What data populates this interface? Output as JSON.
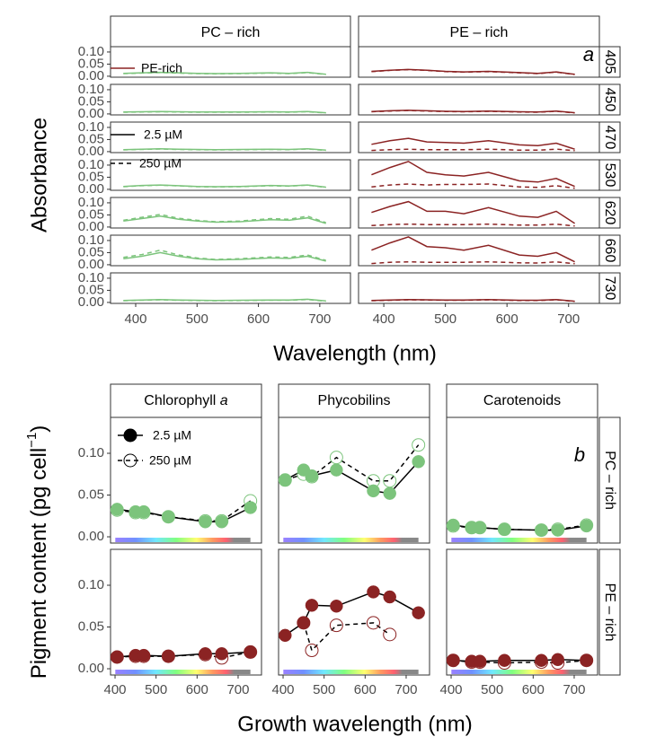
{
  "chart_data": [
    {
      "type": "line",
      "label": "a",
      "y_label": "Absorbance",
      "x_label": "Wavelength (nm)",
      "columns": [
        "PC – rich",
        "PE – rich"
      ],
      "strains": [
        "PC-rich",
        "PE-rich"
      ],
      "colors": [
        "#7cc47c",
        "#8b2323"
      ],
      "doses": [
        "2.5 µM",
        "250 µM"
      ],
      "dashes": [
        "solid",
        "dashed"
      ],
      "x": [
        380,
        410,
        440,
        470,
        500,
        530,
        570,
        620,
        650,
        680,
        710
      ],
      "xlim": [
        359,
        750
      ],
      "xticks": [
        400,
        500,
        600,
        700
      ],
      "ylim": [
        -0.004,
        0.122
      ],
      "yticks": [
        {
          "value": 0,
          "label": "0.00"
        },
        {
          "value": 0.05,
          "label": "0.05"
        },
        {
          "value": 0.1,
          "label": "0.10"
        }
      ],
      "rows": [
        {
          "label": "405",
          "values": [
            [
              [
                0.012,
                0.014,
                0.016,
                0.014,
                0.012,
                0.011,
                0.012,
                0.014,
                0.012,
                0.016,
                0.008
              ],
              [
                0.011,
                0.013,
                0.015,
                0.013,
                0.011,
                0.01,
                0.011,
                0.013,
                0.011,
                0.015,
                0.007
              ]
            ],
            [
              [
                0.02,
                0.025,
                0.028,
                0.025,
                0.02,
                0.018,
                0.02,
                0.015,
                0.012,
                0.018,
                0.008
              ],
              [
                0.019,
                0.024,
                0.027,
                0.024,
                0.019,
                0.017,
                0.019,
                0.014,
                0.011,
                0.017,
                0.007
              ]
            ]
          ]
        },
        {
          "label": "450",
          "values": [
            [
              [
                0.008,
                0.009,
                0.01,
                0.009,
                0.008,
                0.008,
                0.008,
                0.009,
                0.008,
                0.01,
                0.005
              ],
              [
                0.007,
                0.008,
                0.009,
                0.008,
                0.007,
                0.007,
                0.007,
                0.008,
                0.007,
                0.009,
                0.004
              ]
            ],
            [
              [
                0.01,
                0.013,
                0.015,
                0.013,
                0.011,
                0.01,
                0.012,
                0.009,
                0.008,
                0.012,
                0.005
              ],
              [
                0.009,
                0.012,
                0.014,
                0.012,
                0.01,
                0.009,
                0.011,
                0.008,
                0.007,
                0.011,
                0.004
              ]
            ]
          ]
        },
        {
          "label": "470",
          "values": [
            [
              [
                0.008,
                0.01,
                0.012,
                0.01,
                0.009,
                0.008,
                0.009,
                0.01,
                0.009,
                0.012,
                0.006
              ],
              [
                0.007,
                0.009,
                0.011,
                0.009,
                0.008,
                0.007,
                0.008,
                0.009,
                0.008,
                0.011,
                0.005
              ]
            ],
            [
              [
                0.03,
                0.045,
                0.055,
                0.04,
                0.038,
                0.035,
                0.045,
                0.028,
                0.025,
                0.035,
                0.01
              ],
              [
                0.005,
                0.008,
                0.01,
                0.008,
                0.008,
                0.008,
                0.01,
                0.006,
                0.006,
                0.01,
                0.004
              ]
            ]
          ]
        },
        {
          "label": "530",
          "values": [
            [
              [
                0.012,
                0.016,
                0.018,
                0.015,
                0.012,
                0.011,
                0.012,
                0.016,
                0.014,
                0.018,
                0.009
              ],
              [
                0.011,
                0.015,
                0.017,
                0.014,
                0.011,
                0.01,
                0.011,
                0.015,
                0.013,
                0.017,
                0.008
              ]
            ],
            [
              [
                0.06,
                0.09,
                0.115,
                0.07,
                0.06,
                0.055,
                0.07,
                0.035,
                0.03,
                0.045,
                0.012
              ],
              [
                0.01,
                0.018,
                0.022,
                0.018,
                0.02,
                0.02,
                0.022,
                0.01,
                0.008,
                0.015,
                0.004
              ]
            ]
          ]
        },
        {
          "label": "620",
          "values": [
            [
              [
                0.025,
                0.035,
                0.045,
                0.032,
                0.025,
                0.02,
                0.022,
                0.03,
                0.028,
                0.038,
                0.015
              ],
              [
                0.028,
                0.04,
                0.052,
                0.036,
                0.028,
                0.022,
                0.025,
                0.035,
                0.032,
                0.045,
                0.018
              ]
            ],
            [
              [
                0.06,
                0.085,
                0.105,
                0.065,
                0.065,
                0.055,
                0.08,
                0.045,
                0.04,
                0.065,
                0.015
              ],
              [
                0.006,
                0.01,
                0.012,
                0.01,
                0.01,
                0.01,
                0.012,
                0.008,
                0.008,
                0.012,
                0.004
              ]
            ]
          ]
        },
        {
          "label": "660",
          "values": [
            [
              [
                0.025,
                0.035,
                0.05,
                0.035,
                0.025,
                0.02,
                0.022,
                0.028,
                0.026,
                0.035,
                0.015
              ],
              [
                0.03,
                0.042,
                0.06,
                0.04,
                0.028,
                0.022,
                0.025,
                0.032,
                0.03,
                0.04,
                0.018
              ]
            ],
            [
              [
                0.06,
                0.09,
                0.115,
                0.075,
                0.07,
                0.06,
                0.08,
                0.04,
                0.035,
                0.05,
                0.012
              ],
              [
                0.005,
                0.01,
                0.012,
                0.01,
                0.01,
                0.01,
                0.012,
                0.008,
                0.007,
                0.012,
                0.004
              ]
            ]
          ]
        },
        {
          "label": "730",
          "values": [
            [
              [
                0.008,
                0.01,
                0.012,
                0.01,
                0.009,
                0.008,
                0.009,
                0.01,
                0.01,
                0.013,
                0.006
              ],
              [
                0.007,
                0.009,
                0.011,
                0.009,
                0.008,
                0.007,
                0.008,
                0.009,
                0.009,
                0.012,
                0.005
              ]
            ],
            [
              [
                0.008,
                0.01,
                0.012,
                0.011,
                0.01,
                0.01,
                0.012,
                0.009,
                0.009,
                0.012,
                0.005
              ],
              [
                0.007,
                0.009,
                0.011,
                0.01,
                0.009,
                0.009,
                0.011,
                0.008,
                0.008,
                0.011,
                0.004
              ]
            ]
          ]
        }
      ]
    },
    {
      "type": "line",
      "label": "b",
      "y_label": [
        "Pigment content  (pg cell",
        "−1",
        ")"
      ],
      "x_label": "Growth wavelength (nm)",
      "columns": [
        [
          "Chlorophyll ",
          "a"
        ],
        [
          "Phycobilins"
        ],
        [
          "Carotenoids"
        ]
      ],
      "rows": [
        "PC – rich",
        "PE – rich"
      ],
      "colors": [
        "#7cc47c",
        "#8b2323"
      ],
      "doses": [
        "2.5 µM",
        "250 µM"
      ],
      "dashes": [
        "solid",
        "dashed"
      ],
      "markers": [
        "filled",
        "open"
      ],
      "x": [
        405,
        450,
        470,
        530,
        620,
        660,
        730
      ],
      "xlim": [
        389,
        757
      ],
      "xticks": [
        400,
        500,
        600,
        700
      ],
      "ylim": [
        -0.0075,
        0.143
      ],
      "yticks": [
        {
          "value": 0,
          "label": "0.00"
        },
        {
          "value": 0.05,
          "label": "0.05"
        },
        {
          "value": 0.1,
          "label": "0.10"
        }
      ],
      "values": [
        [
          [
            [
              0.033,
              0.03,
              0.03,
              0.024,
              0.018,
              0.018,
              0.035
            ],
            [
              0.032,
              0.029,
              0.029,
              0.024,
              0.019,
              0.019,
              0.043
            ]
          ],
          [
            [
              0.068,
              0.08,
              0.073,
              0.08,
              0.055,
              0.052,
              0.09
            ],
            [
              0.068,
              0.075,
              0.072,
              0.095,
              0.067,
              0.067,
              0.11
            ]
          ],
          [
            [
              0.014,
              0.011,
              0.011,
              0.009,
              0.008,
              0.008,
              0.013
            ],
            [
              0.013,
              0.011,
              0.011,
              0.009,
              0.008,
              0.009,
              0.014
            ]
          ]
        ],
        [
          [
            [
              0.014,
              0.016,
              0.016,
              0.015,
              0.018,
              0.018,
              0.02
            ],
            [
              0.014,
              0.015,
              0.015,
              0.015,
              0.017,
              0.013,
              0.02
            ]
          ],
          [
            [
              0.04,
              0.055,
              0.076,
              0.075,
              0.092,
              0.086,
              0.067
            ],
            [
              null,
              0.055,
              0.022,
              0.052,
              0.055,
              0.041,
              null
            ]
          ],
          [
            [
              0.01,
              0.009,
              0.009,
              0.01,
              0.01,
              0.011,
              0.01
            ],
            [
              0.01,
              0.008,
              0.008,
              0.007,
              0.008,
              0.007,
              0.01
            ]
          ]
        ]
      ]
    }
  ]
}
